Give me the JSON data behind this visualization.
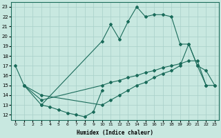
{
  "xlabel": "Humidex (Indice chaleur)",
  "ylabel": "",
  "bg_color": "#c8e8e0",
  "line_color": "#1a6b5a",
  "grid_color": "#a8cfc8",
  "xlim": [
    -0.5,
    23.5
  ],
  "ylim": [
    11.5,
    23.5
  ],
  "yticks": [
    12,
    13,
    14,
    15,
    16,
    17,
    18,
    19,
    20,
    21,
    22,
    23
  ],
  "xticks": [
    0,
    1,
    2,
    3,
    4,
    5,
    6,
    7,
    8,
    9,
    10,
    11,
    12,
    13,
    14,
    15,
    16,
    17,
    18,
    19,
    20,
    21,
    22,
    23
  ],
  "line_A_x": [
    0,
    1,
    3,
    10,
    11,
    12,
    13,
    14,
    15,
    16,
    17,
    18,
    19,
    20,
    21,
    22,
    23
  ],
  "line_A_y": [
    17,
    15,
    13.5,
    15,
    15.3,
    15.5,
    15.8,
    16.0,
    16.3,
    16.5,
    16.8,
    17.0,
    17.2,
    17.5,
    17.5,
    15,
    15
  ],
  "line_B_x": [
    1,
    3,
    10,
    11,
    12,
    13,
    14,
    15,
    16,
    17,
    18,
    19,
    20,
    21,
    22,
    23
  ],
  "line_B_y": [
    15,
    14,
    13,
    13.5,
    14,
    14.5,
    15,
    15.3,
    15.8,
    16.2,
    16.5,
    17,
    19.2,
    17,
    16.5,
    15
  ],
  "line_C_x": [
    1,
    3,
    10,
    11,
    12,
    13,
    14,
    15,
    16,
    17,
    18,
    19,
    20,
    21,
    22
  ],
  "line_C_y": [
    15,
    13,
    19.5,
    21.2,
    19.7,
    21.5,
    23,
    22,
    22.2,
    22.2,
    22,
    19.2,
    19.2,
    17,
    15
  ],
  "line_D_x": [
    3,
    4,
    5,
    6,
    7,
    8,
    9,
    10
  ],
  "line_D_y": [
    13,
    12.8,
    12.5,
    12.2,
    12,
    11.8,
    12.3,
    14.5
  ]
}
